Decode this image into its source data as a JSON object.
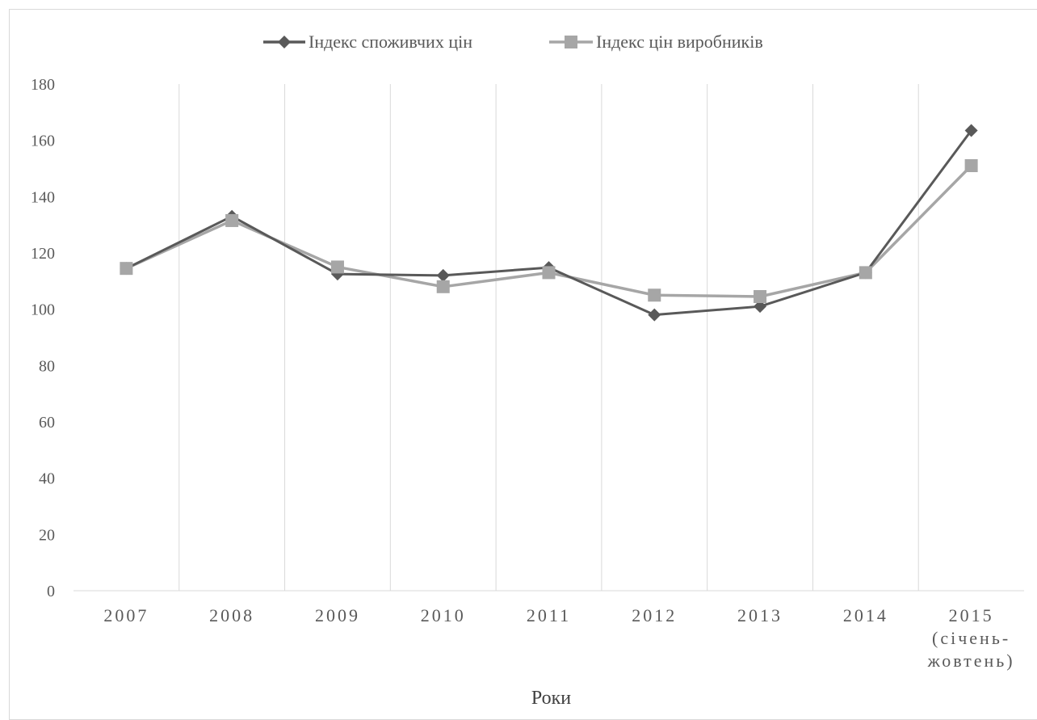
{
  "chart_data": {
    "type": "line",
    "title": "",
    "xlabel": "Роки",
    "ylabel": "",
    "categories": [
      [
        "2007"
      ],
      [
        "2008"
      ],
      [
        "2009"
      ],
      [
        "2010"
      ],
      [
        "2011"
      ],
      [
        "2012"
      ],
      [
        "2013"
      ],
      [
        "2014"
      ],
      [
        "2015",
        "(січень-",
        "жовтень)"
      ]
    ],
    "ylim": [
      0,
      180
    ],
    "yticks": [
      0,
      20,
      40,
      60,
      80,
      100,
      120,
      140,
      160,
      180
    ],
    "grid": "vertical",
    "legend_position": "top",
    "series": [
      {
        "name": "Індекс споживчих цін",
        "marker": "diamond",
        "color": "#595959",
        "values": [
          114.5,
          133.0,
          112.5,
          112.0,
          114.8,
          98.0,
          101.0,
          113.0,
          163.5
        ]
      },
      {
        "name": "Індекс цін виробників",
        "marker": "square",
        "color": "#a6a6a6",
        "values": [
          114.5,
          131.5,
          115.0,
          108.0,
          113.0,
          105.0,
          104.5,
          113.0,
          151.0
        ]
      }
    ]
  }
}
